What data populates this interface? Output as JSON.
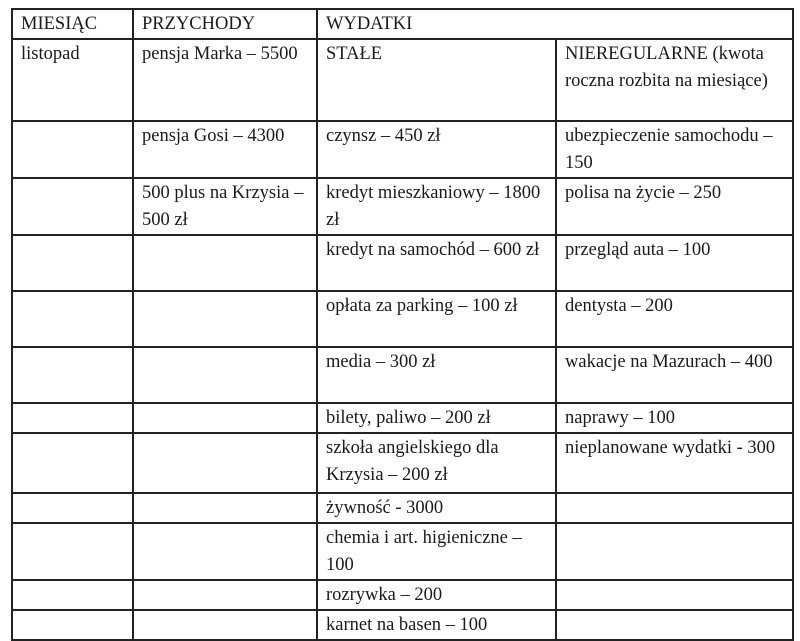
{
  "headers": [
    "MIESIĄC",
    "PRZYCHODY",
    "WYDATKI"
  ],
  "subheaders": {
    "fixed": "STAŁE",
    "irregular": "NIEREGULARNE (kwota roczna rozbita na miesiące)"
  },
  "month": "listopad",
  "rows": [
    {
      "income": "pensja Marka – 5500",
      "fixed": "",
      "irregular": ""
    },
    {
      "income": "pensja Gosi – 4300",
      "fixed": "czynsz – 450 zł",
      "irregular": "ubezpieczenie samochodu – 150"
    },
    {
      "income": "500 plus na Krzysia – 500 zł",
      "fixed": "kredyt mieszkaniowy – 1800 zł",
      "irregular": "polisa na życie – 250"
    },
    {
      "income": "",
      "fixed": "kredyt na samochód – 600 zł",
      "irregular": "przegląd auta – 100"
    },
    {
      "income": "",
      "fixed": "opłata za parking – 100 zł",
      "irregular": "dentysta – 200"
    },
    {
      "income": "",
      "fixed": "media – 300 zł",
      "irregular": "wakacje na Mazurach – 400"
    },
    {
      "income": "",
      "fixed": "bilety, paliwo – 200 zł",
      "irregular": "naprawy – 100"
    },
    {
      "income": "",
      "fixed": "szkoła angielskiego dla Krzysia – 200 zł",
      "irregular": "nieplanowane wydatki - 300"
    },
    {
      "income": "",
      "fixed": "żywność - 3000",
      "irregular": ""
    },
    {
      "income": "",
      "fixed": "chemia i art. higieniczne – 100",
      "irregular": ""
    },
    {
      "income": "",
      "fixed": "rozrywka – 200",
      "irregular": ""
    },
    {
      "income": "",
      "fixed": "karnet na basen – 100",
      "irregular": ""
    }
  ]
}
